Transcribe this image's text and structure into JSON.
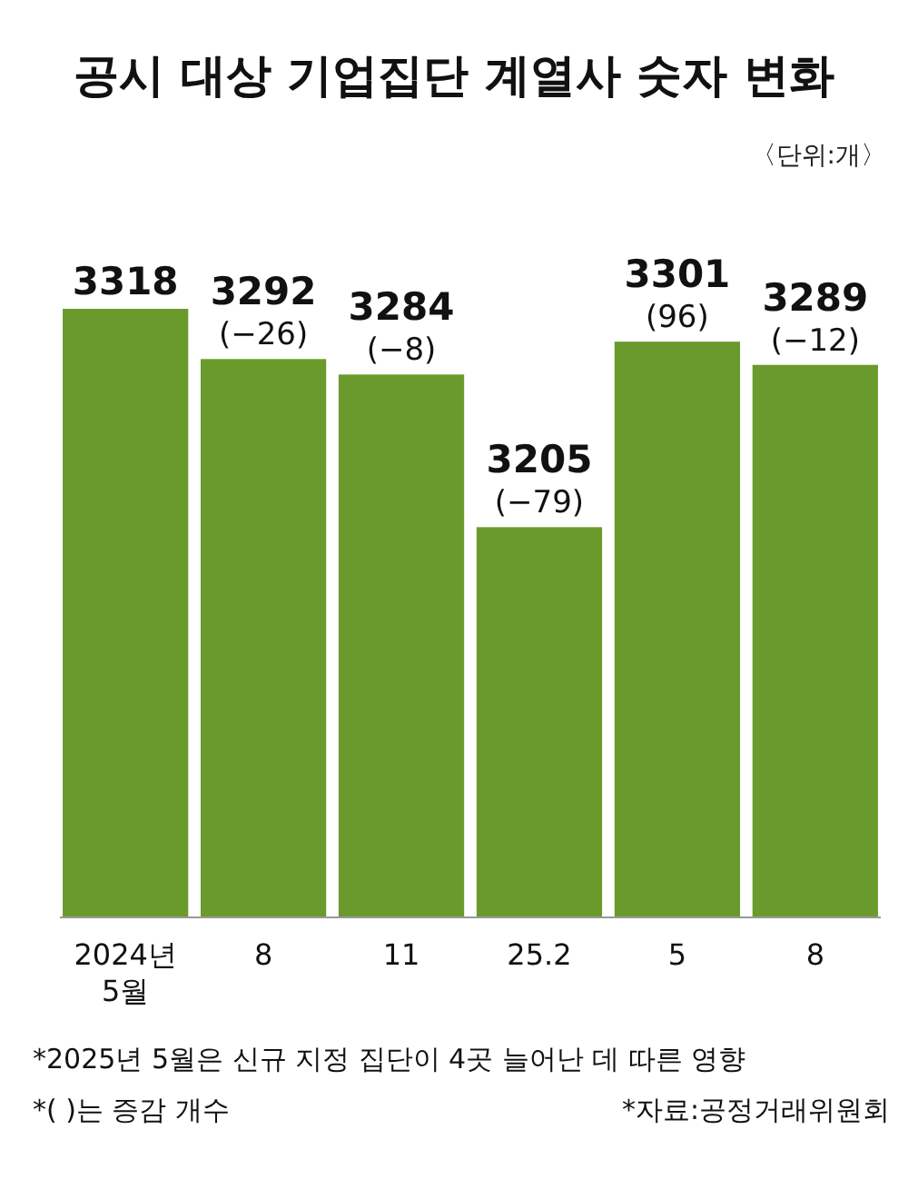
{
  "chart_data": {
    "type": "bar",
    "title": "공시 대상 기업집단 계열사 숫자 변화",
    "subtitle": "〈단위:개〉",
    "categories": [
      "2024년\n5월",
      "8",
      "11",
      "25.2",
      "5",
      "8"
    ],
    "values": [
      3318,
      3292,
      3284,
      3205,
      3301,
      3289
    ],
    "color": "#6b9a2c",
    "value_labels": [
      "3318",
      "3292\n(−26)",
      "3284\n(−8)",
      "3205\n(−79)",
      "3301\n(96)",
      "3289\n(−12)"
    ],
    "ylim": [
      3003,
      3318
    ],
    "tick_labels": "x",
    "annotations": [
      "*2025년 5월은 신규 지정 집단이 4곳 늘어난 데 따른 영향",
      "*(   )는 증감 개수",
      "*자료:공정거래위원회"
    ]
  }
}
